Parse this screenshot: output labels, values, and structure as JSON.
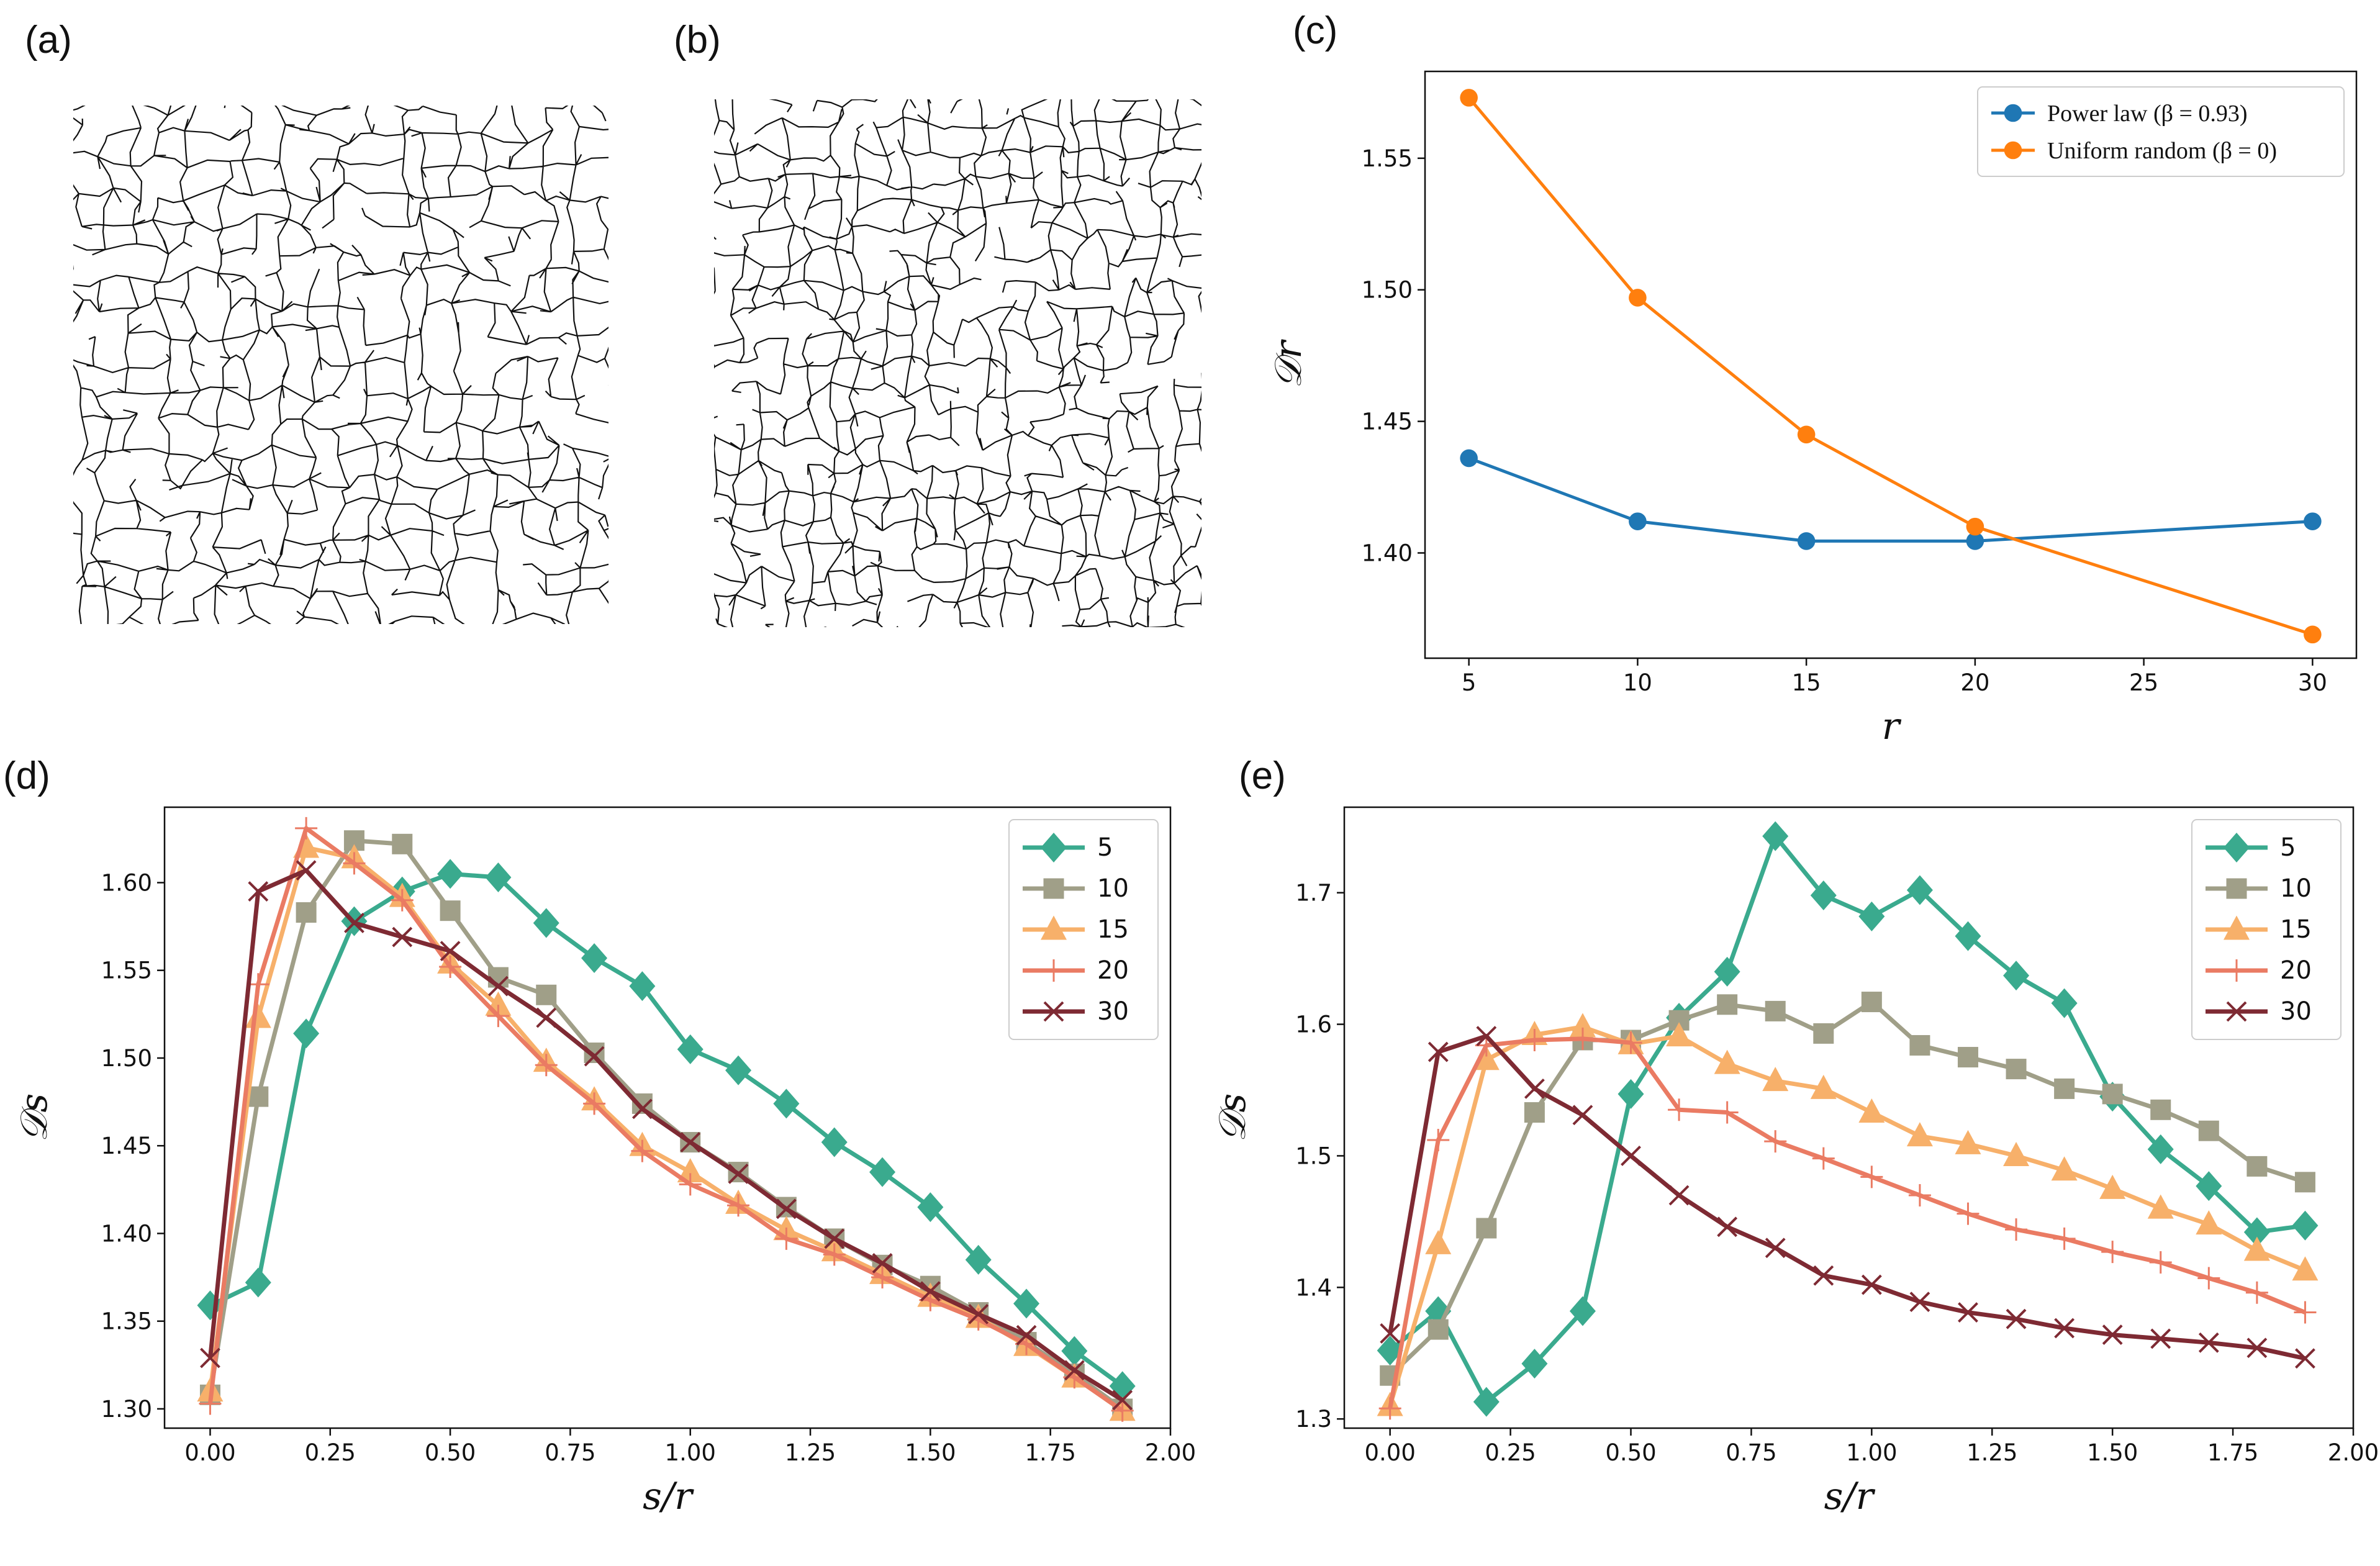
{
  "panel_labels": {
    "a": "(a)",
    "b": "(b)",
    "c": "(c)",
    "d": "(d)",
    "e": "(e)"
  },
  "chart_data": [
    {
      "id": "c",
      "type": "line",
      "x": [
        5,
        10,
        15,
        20,
        30
      ],
      "series": [
        {
          "name": "Power law (β = 0.93)",
          "color": "#1f77b4",
          "marker": "circle",
          "values": [
            1.436,
            1.412,
            1.4045,
            1.4045,
            1.412
          ]
        },
        {
          "name": "Uniform random (β = 0)",
          "color": "#ff7f0e",
          "marker": "circle",
          "values": [
            1.573,
            1.497,
            1.445,
            1.41,
            1.369
          ]
        }
      ],
      "xlabel": "r",
      "ylabel": "𝒟r",
      "xlim": [
        3.7,
        31.3
      ],
      "ylim": [
        1.36,
        1.583
      ],
      "xticks": [
        5,
        10,
        15,
        20,
        25,
        30
      ],
      "yticks": [
        1.4,
        1.45,
        1.5,
        1.55
      ],
      "xtick_labels": [
        "5",
        "10",
        "15",
        "20",
        "25",
        "30"
      ],
      "ytick_labels": [
        "1.40",
        "1.45",
        "1.50",
        "1.55"
      ],
      "legend_position": "top-right",
      "grid": false
    },
    {
      "id": "d",
      "type": "line",
      "x": [
        0,
        0.1,
        0.2,
        0.3,
        0.4,
        0.5,
        0.6,
        0.7,
        0.8,
        0.9,
        1.0,
        1.1,
        1.2,
        1.3,
        1.4,
        1.5,
        1.6,
        1.7,
        1.8,
        1.9
      ],
      "series": [
        {
          "name": "5",
          "color": "#3aaa8e",
          "marker": "diamond",
          "values": [
            1.359,
            1.372,
            1.514,
            1.578,
            1.595,
            1.605,
            1.603,
            1.577,
            1.557,
            1.541,
            1.505,
            1.493,
            1.474,
            1.452,
            1.435,
            1.415,
            1.385,
            1.36,
            1.333,
            1.313
          ]
        },
        {
          "name": "10",
          "color": "#a09f88",
          "marker": "square",
          "values": [
            1.308,
            1.478,
            1.583,
            1.624,
            1.622,
            1.584,
            1.546,
            1.536,
            1.503,
            1.474,
            1.452,
            1.435,
            1.415,
            1.397,
            1.382,
            1.37,
            1.355,
            1.338,
            1.32,
            1.3
          ]
        },
        {
          "name": "15",
          "color": "#f7b06a",
          "marker": "triangle",
          "values": [
            1.31,
            1.523,
            1.62,
            1.614,
            1.592,
            1.554,
            1.53,
            1.498,
            1.476,
            1.45,
            1.435,
            1.417,
            1.402,
            1.39,
            1.377,
            1.364,
            1.352,
            1.336,
            1.318,
            1.299
          ]
        },
        {
          "name": "20",
          "color": "#ea7b63",
          "marker": "plus",
          "values": [
            1.303,
            1.542,
            1.631,
            1.611,
            1.59,
            1.552,
            1.524,
            1.496,
            1.474,
            1.447,
            1.428,
            1.416,
            1.397,
            1.388,
            1.375,
            1.362,
            1.351,
            1.337,
            1.318,
            1.299
          ]
        },
        {
          "name": "30",
          "color": "#7e2a33",
          "marker": "x",
          "values": [
            1.329,
            1.595,
            1.607,
            1.577,
            1.569,
            1.561,
            1.541,
            1.523,
            1.501,
            1.471,
            1.452,
            1.434,
            1.414,
            1.397,
            1.383,
            1.367,
            1.354,
            1.342,
            1.322,
            1.305
          ]
        }
      ],
      "xlabel": "s/r",
      "ylabel": "𝒟s",
      "xlim": [
        -0.095,
        2.0
      ],
      "ylim": [
        1.289,
        1.643
      ],
      "xticks": [
        0,
        0.25,
        0.5,
        0.75,
        1.0,
        1.25,
        1.5,
        1.75,
        2.0
      ],
      "yticks": [
        1.3,
        1.35,
        1.4,
        1.45,
        1.5,
        1.55,
        1.6
      ],
      "xtick_labels": [
        "0.00",
        "0.25",
        "0.50",
        "0.75",
        "1.00",
        "1.25",
        "1.50",
        "1.75",
        "2.00"
      ],
      "ytick_labels": [
        "1.30",
        "1.35",
        "1.40",
        "1.45",
        "1.50",
        "1.55",
        "1.60"
      ],
      "legend_position": "top-right",
      "grid": false
    },
    {
      "id": "e",
      "type": "line",
      "x": [
        0,
        0.1,
        0.2,
        0.3,
        0.4,
        0.5,
        0.6,
        0.7,
        0.8,
        0.9,
        1.0,
        1.1,
        1.2,
        1.3,
        1.4,
        1.5,
        1.6,
        1.7,
        1.8,
        1.9
      ],
      "series": [
        {
          "name": "5",
          "color": "#3aaa8e",
          "marker": "diamond",
          "values": [
            1.352,
            1.382,
            1.313,
            1.342,
            1.382,
            1.547,
            1.605,
            1.64,
            1.743,
            1.698,
            1.682,
            1.702,
            1.667,
            1.637,
            1.616,
            1.545,
            1.505,
            1.477,
            1.442,
            1.447
          ]
        },
        {
          "name": "10",
          "color": "#a09f88",
          "marker": "square",
          "values": [
            1.333,
            1.368,
            1.445,
            1.533,
            1.588,
            1.588,
            1.603,
            1.615,
            1.61,
            1.593,
            1.617,
            1.584,
            1.575,
            1.566,
            1.551,
            1.547,
            1.535,
            1.519,
            1.492,
            1.48
          ]
        },
        {
          "name": "15",
          "color": "#f7b06a",
          "marker": "triangle",
          "values": [
            1.31,
            1.433,
            1.573,
            1.592,
            1.598,
            1.585,
            1.591,
            1.57,
            1.557,
            1.551,
            1.533,
            1.515,
            1.509,
            1.5,
            1.489,
            1.475,
            1.46,
            1.448,
            1.428,
            1.413
          ]
        },
        {
          "name": "20",
          "color": "#ea7b63",
          "marker": "plus",
          "values": [
            1.308,
            1.512,
            1.584,
            1.588,
            1.589,
            1.586,
            1.535,
            1.533,
            1.511,
            1.498,
            1.484,
            1.47,
            1.456,
            1.444,
            1.437,
            1.427,
            1.419,
            1.407,
            1.396,
            1.381
          ]
        },
        {
          "name": "30",
          "color": "#7e2a33",
          "marker": "x",
          "values": [
            1.365,
            1.579,
            1.591,
            1.551,
            1.531,
            1.5,
            1.47,
            1.446,
            1.43,
            1.409,
            1.402,
            1.389,
            1.381,
            1.376,
            1.369,
            1.364,
            1.361,
            1.358,
            1.354,
            1.346
          ]
        }
      ],
      "xlabel": "s/r",
      "ylabel": "𝒟s",
      "xlim": [
        -0.095,
        2.0
      ],
      "ylim": [
        1.293,
        1.765
      ],
      "xticks": [
        0,
        0.25,
        0.5,
        0.75,
        1.0,
        1.25,
        1.5,
        1.75,
        2.0
      ],
      "yticks": [
        1.3,
        1.4,
        1.5,
        1.6,
        1.7
      ],
      "xtick_labels": [
        "0.00",
        "0.25",
        "0.50",
        "0.75",
        "1.00",
        "1.25",
        "1.50",
        "1.75",
        "2.00"
      ],
      "ytick_labels": [
        "1.3",
        "1.4",
        "1.5",
        "1.6",
        "1.7"
      ],
      "legend_position": "top-right",
      "grid": false
    }
  ]
}
